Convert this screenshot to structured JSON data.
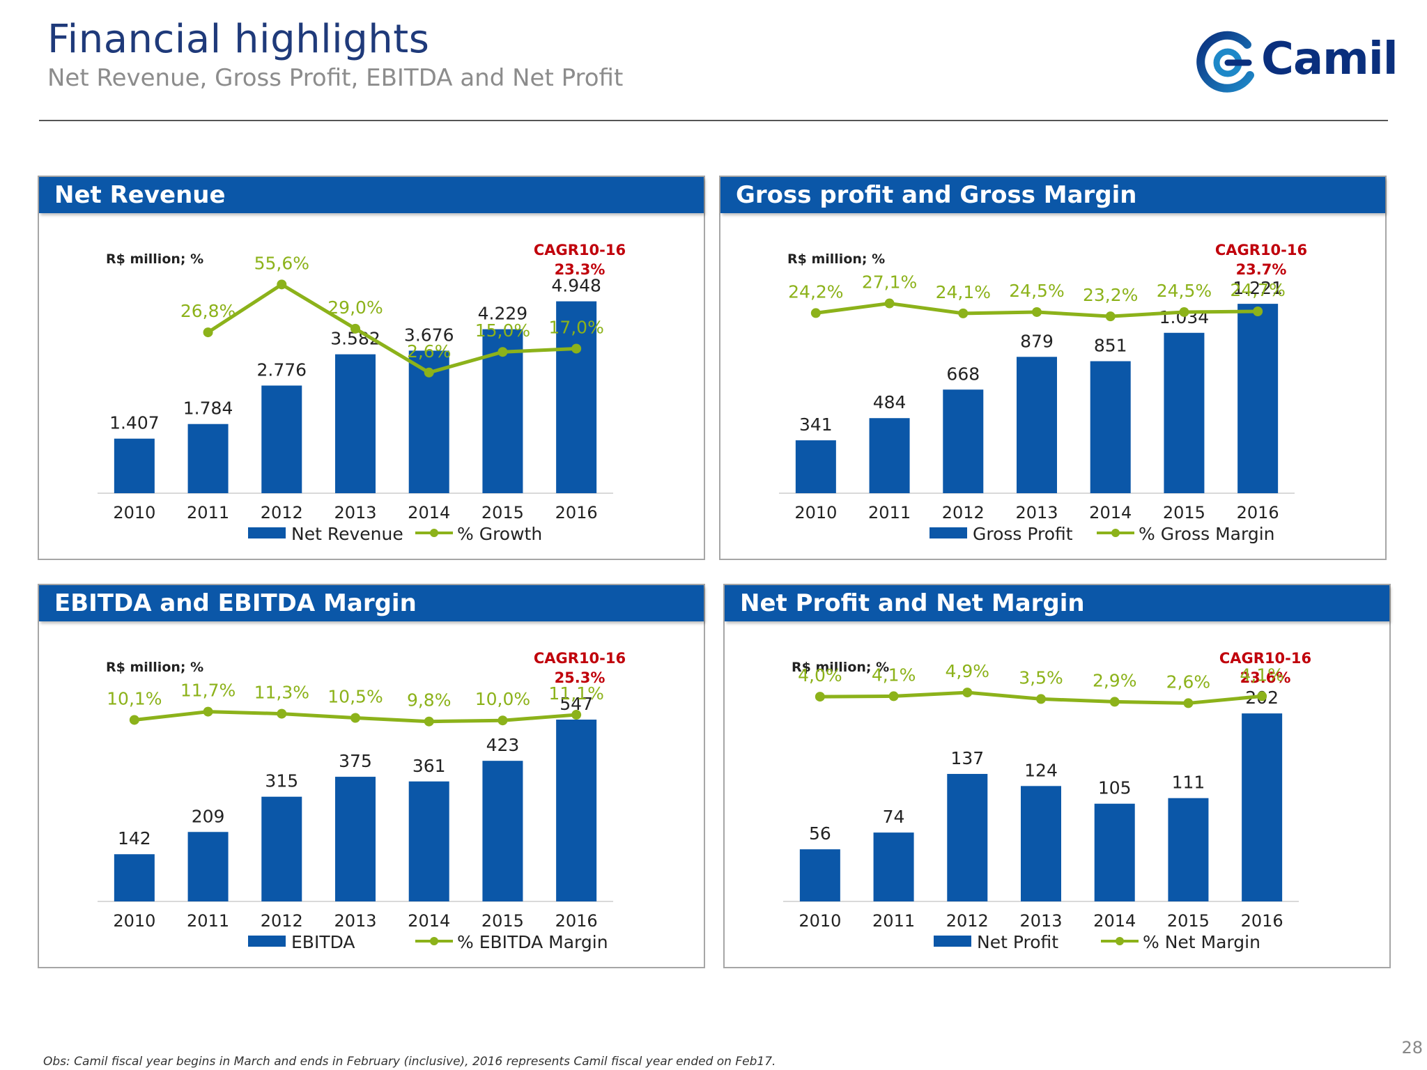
{
  "header": {
    "title": "Financial highlights",
    "subtitle": "Net Revenue, Gross Profit, EBITDA and Net Profit",
    "logo_text": "Camil"
  },
  "footer": {
    "note": "Obs: Camil fiscal year begins in March and ends in February (inclusive), 2016 represents Camil fiscal year ended on Feb17.",
    "page_number": "28"
  },
  "colors": {
    "bar": "#0b57a8",
    "line": "#8cb21a",
    "header": "#0b57a8",
    "cagr": "#c0000b"
  },
  "chart_data": [
    {
      "type": "bar",
      "title": "Net Revenue",
      "unit_label": "R$ million; %",
      "cagr_label": "CAGR10-16",
      "cagr_value": "23.3%",
      "categories": [
        "2010",
        "2011",
        "2012",
        "2013",
        "2014",
        "2015",
        "2016"
      ],
      "series": [
        {
          "name": "Net Revenue",
          "kind": "bar",
          "values": [
            1407,
            1784,
            2776,
            3582,
            3676,
            4229,
            4948
          ],
          "labels": [
            "1.407",
            "1.784",
            "2.776",
            "3.582",
            "3.676",
            "4.229",
            "4.948"
          ]
        },
        {
          "name": "% Growth",
          "kind": "line",
          "values": [
            null,
            26.8,
            55.6,
            29.0,
            2.6,
            15.0,
            17.0
          ],
          "labels": [
            "",
            "26,8%",
            "55,6%",
            "29,0%",
            "2,6%",
            "15,0%",
            "17,0%"
          ]
        }
      ],
      "bar_max": 6000,
      "line_range": [
        -70,
        70
      ]
    },
    {
      "type": "bar",
      "title": "Gross profit and Gross Margin",
      "unit_label": "R$ million; %",
      "cagr_label": "CAGR10-16",
      "cagr_value": "23.7%",
      "categories": [
        "2010",
        "2011",
        "2012",
        "2013",
        "2014",
        "2015",
        "2016"
      ],
      "series": [
        {
          "name": "Gross Profit",
          "kind": "bar",
          "values": [
            341,
            484,
            668,
            879,
            851,
            1034,
            1221
          ],
          "labels": [
            "341",
            "484",
            "668",
            "879",
            "851",
            "1.034",
            "1.221"
          ]
        },
        {
          "name": "% Gross Margin",
          "kind": "line",
          "values": [
            24.2,
            27.1,
            24.1,
            24.5,
            23.2,
            24.5,
            24.7
          ],
          "labels": [
            "24,2%",
            "27,1%",
            "24,1%",
            "24,5%",
            "23,2%",
            "24,5%",
            "24,7%"
          ]
        }
      ],
      "bar_max": 1500,
      "line_range": [
        -30,
        40
      ]
    },
    {
      "type": "bar",
      "title": "EBITDA and EBITDA Margin",
      "unit_label": "R$ million; %",
      "cagr_label": "CAGR10-16",
      "cagr_value": "25.3%",
      "categories": [
        "2010",
        "2011",
        "2012",
        "2013",
        "2014",
        "2015",
        "2016"
      ],
      "series": [
        {
          "name": "EBITDA",
          "kind": "bar",
          "values": [
            142,
            209,
            315,
            375,
            361,
            423,
            547
          ],
          "labels": [
            "142",
            "209",
            "315",
            "375",
            "361",
            "423",
            "547"
          ]
        },
        {
          "name": "% EBITDA Margin",
          "kind": "line",
          "values": [
            10.1,
            11.7,
            11.3,
            10.5,
            9.8,
            10.0,
            11.1
          ],
          "labels": [
            "10,1%",
            "11,7%",
            "11,3%",
            "10,5%",
            "9,8%",
            "10,0%",
            "11,1%"
          ]
        }
      ],
      "bar_max": 700,
      "line_range": [
        -25,
        20
      ]
    },
    {
      "type": "bar",
      "title": "Net Profit and Net Margin",
      "unit_label": "R$ million; %",
      "cagr_label": "CAGR10-16",
      "cagr_value": "23.6%",
      "categories": [
        "2010",
        "2011",
        "2012",
        "2013",
        "2014",
        "2015",
        "2016"
      ],
      "series": [
        {
          "name": "Net Profit",
          "kind": "bar",
          "values": [
            56,
            74,
            137,
            124,
            105,
            111,
            202
          ],
          "labels": [
            "56",
            "74",
            "137",
            "124",
            "105",
            "111",
            "202"
          ]
        },
        {
          "name": "% Net Margin",
          "kind": "line",
          "values": [
            4.0,
            4.1,
            4.9,
            3.5,
            2.9,
            2.6,
            4.1
          ],
          "labels": [
            "4,0%",
            "4,1%",
            "4,9%",
            "3,5%",
            "2,9%",
            "2,6%",
            "4,1%"
          ]
        }
      ],
      "bar_max": 250,
      "line_range": [
        -40,
        10
      ]
    }
  ]
}
